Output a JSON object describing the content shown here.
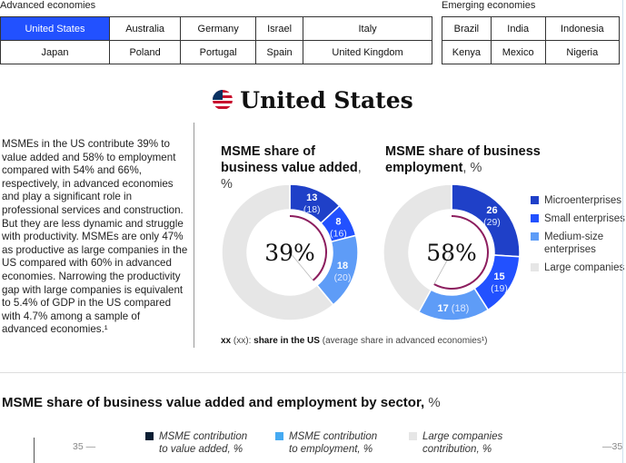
{
  "advanced": {
    "label": "Advanced economies",
    "rows": [
      [
        "United States",
        "Australia",
        "Germany",
        "Israel",
        "Italy"
      ],
      [
        "Japan",
        "Poland",
        "Portugal",
        "Spain",
        "United Kingdom"
      ]
    ],
    "selected": "United States"
  },
  "emerging": {
    "label": "Emerging economies",
    "rows": [
      [
        "Brazil",
        "India",
        "Indonesia"
      ],
      [
        "Kenya",
        "Mexico",
        "Nigeria"
      ]
    ]
  },
  "country_title": "United States",
  "paragraph": "MSMEs in the US contribute 39% to value added and 58% to employment compared with 54% and 66%, respectively, in advanced economies and play a significant role in professional services and construction. But they are less dynamic and struggle with productivity. MSMEs are only 47% as productive as large companies in the US compared with 60% in advanced economies. Narrowing the productivity gap with large companies is equivalent to 5.4% of GDP in the US compared with 4.7% among a sample of advanced economies.¹",
  "chart_data": [
    {
      "type": "pie",
      "title": "MSME share of business value added",
      "unit": ", %",
      "center_label": "39%",
      "categories": [
        "Microenterprises",
        "Small enterprises",
        "Medium-size enterprises",
        "Large companies"
      ],
      "values": [
        13,
        8,
        18,
        61
      ],
      "advanced_avg": [
        18,
        16,
        20,
        null
      ],
      "labels": [
        "13",
        "8",
        "18",
        ""
      ],
      "avg_labels": [
        "(18)",
        "(16)",
        "(20)",
        ""
      ]
    },
    {
      "type": "pie",
      "title": "MSME share of business employment",
      "unit": ", %",
      "center_label": "58%",
      "categories": [
        "Microenterprises",
        "Small enterprises",
        "Medium-size enterprises",
        "Large companies"
      ],
      "values": [
        26,
        15,
        17,
        42
      ],
      "advanced_avg": [
        29,
        19,
        18,
        null
      ],
      "labels": [
        "26",
        "15",
        "17",
        ""
      ],
      "avg_labels": [
        "(29)",
        "(19)",
        "(18)",
        ""
      ]
    }
  ],
  "legend": [
    {
      "label": "Microenterprises",
      "color": "#1f40c8"
    },
    {
      "label": "Small enterprises",
      "color": "#2251ff"
    },
    {
      "label": "Medium-size enterprises",
      "color": "#5e9cf7"
    },
    {
      "label": "Large companies",
      "color": "#e6e6e6"
    }
  ],
  "accent_arc_color": "#8c1d5e",
  "footnote": {
    "key": "xx",
    "key2": "(xx):",
    "bold": "share in the US",
    "rest": "(average share in advanced economies¹)"
  },
  "sector": {
    "title": "MSME share of business value added and employment by sector,",
    "unit": "%",
    "legend": [
      {
        "label": "MSME contribution to value added, %",
        "color": "#0b1e33"
      },
      {
        "label": "MSME contribution to employment, %",
        "color": "#45aaf2"
      },
      {
        "label": "Large companies contribution, %",
        "color": "#e6e6e6"
      }
    ],
    "tick_left": "35",
    "tick_right": "35"
  }
}
